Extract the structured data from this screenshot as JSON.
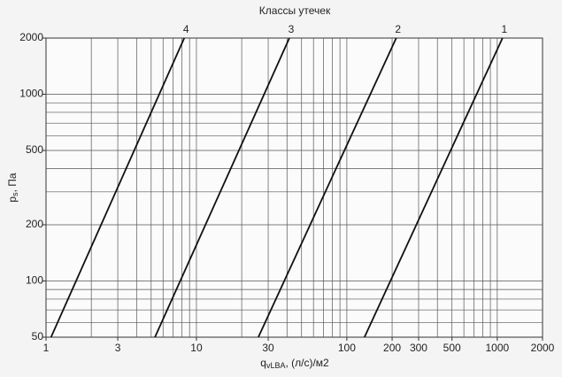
{
  "chart_data": {
    "type": "line",
    "title": "Классы утечек",
    "xlabel": [
      "q",
      "vLBA",
      ", (л/с)/м2"
    ],
    "ylabel": [
      "p",
      "s",
      ", Па"
    ],
    "xscale": "log",
    "yscale": "log",
    "xlim": [
      1,
      2000
    ],
    "ylim": [
      50,
      2000
    ],
    "xticks": [
      1,
      3,
      10,
      30,
      100,
      200,
      300,
      500,
      1000,
      2000
    ],
    "yticks": [
      50,
      100,
      200,
      500,
      1000,
      2000
    ],
    "xgrid": [
      2,
      3,
      4,
      5,
      6,
      7,
      8,
      9,
      10,
      20,
      30,
      40,
      50,
      60,
      70,
      80,
      90,
      100,
      200,
      300,
      400,
      500,
      600,
      700,
      800,
      900,
      1000
    ],
    "ygrid": [
      60,
      70,
      80,
      90,
      100,
      200,
      300,
      400,
      500,
      600,
      700,
      800,
      900,
      1000
    ],
    "series": [
      {
        "name": "4",
        "color": "#111111",
        "x": [
          1.08,
          8.3
        ],
        "values": [
          50,
          2000
        ]
      },
      {
        "name": "3",
        "color": "#111111",
        "x": [
          5.3,
          41.5
        ],
        "values": [
          50,
          2000
        ]
      },
      {
        "name": "2",
        "color": "#111111",
        "x": [
          25.8,
          213
        ],
        "values": [
          50,
          2000
        ]
      },
      {
        "name": "1",
        "color": "#111111",
        "x": [
          131,
          1084
        ],
        "values": [
          50,
          2000
        ]
      }
    ]
  }
}
